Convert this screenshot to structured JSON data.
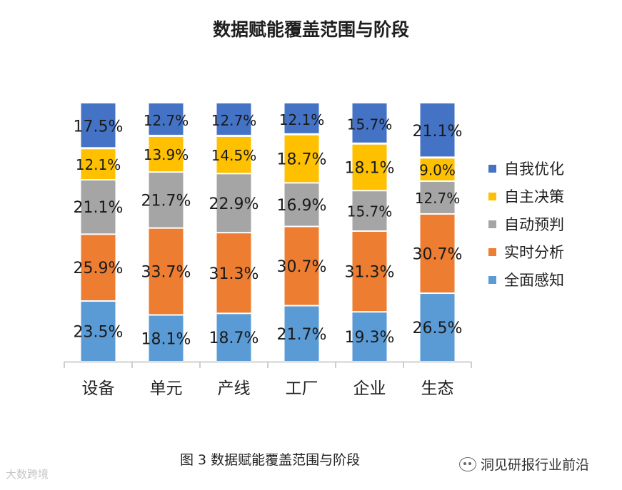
{
  "chart_data": {
    "type": "bar",
    "stacked": true,
    "percent": true,
    "title": "数据赋能覆盖范围与阶段",
    "categories": [
      "设备",
      "单元",
      "产线",
      "工厂",
      "企业",
      "生态"
    ],
    "series": [
      {
        "name": "全面感知",
        "color": "#5b9bd5",
        "values": [
          23.5,
          18.1,
          18.7,
          21.7,
          19.3,
          26.5
        ]
      },
      {
        "name": "实时分析",
        "color": "#ed7d31",
        "values": [
          25.9,
          33.7,
          31.3,
          30.7,
          31.3,
          30.7
        ]
      },
      {
        "name": "自动预判",
        "color": "#a5a5a5",
        "values": [
          21.1,
          21.7,
          22.9,
          16.9,
          15.7,
          12.7
        ]
      },
      {
        "name": "自主决策",
        "color": "#ffc000",
        "values": [
          12.1,
          13.9,
          14.5,
          18.7,
          18.1,
          9.0
        ]
      },
      {
        "name": "自我优化",
        "color": "#4472c4",
        "values": [
          17.5,
          12.7,
          12.7,
          12.1,
          15.7,
          21.1
        ]
      }
    ],
    "legend_position": "right",
    "grid": false
  },
  "caption": "图 3 数据赋能覆盖范围与阶段",
  "watermark_left": "大数跨境",
  "watermark_right": "洞见研报行业前沿"
}
